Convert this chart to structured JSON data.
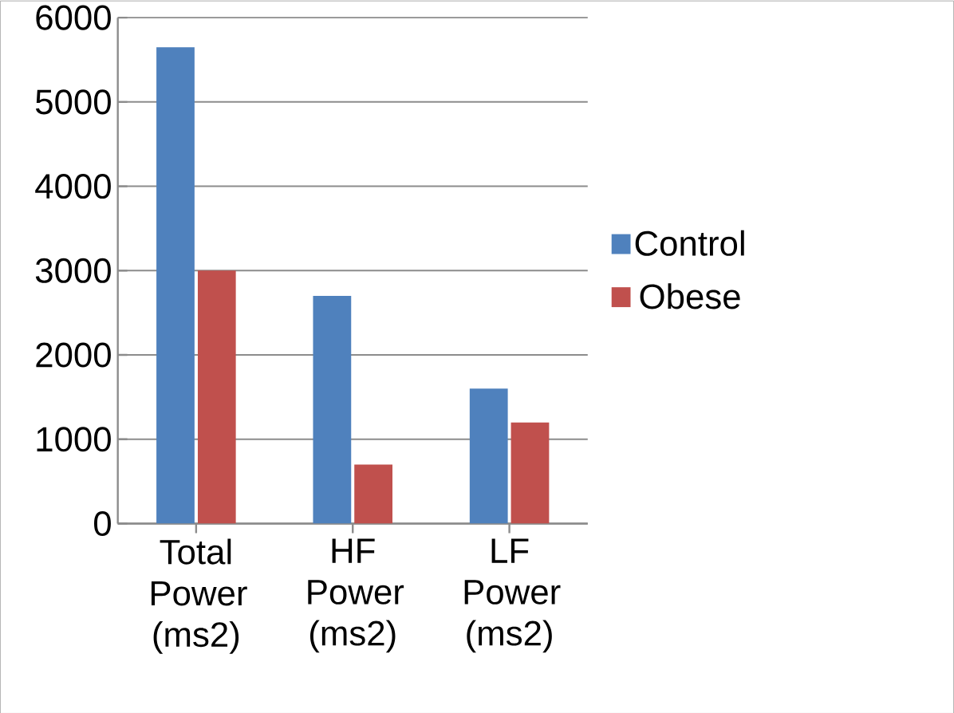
{
  "chart_data": {
    "type": "bar",
    "categories": [
      "Total Power (ms2)",
      "HF Power (ms2)",
      "LF Power (ms2)"
    ],
    "series": [
      {
        "name": "Control",
        "color": "#4f81bd",
        "values": [
          5650,
          2700,
          1600
        ]
      },
      {
        "name": "Obese",
        "color": "#c0504d",
        "values": [
          3000,
          700,
          1200
        ]
      }
    ],
    "ylim": [
      0,
      6000
    ],
    "yticks": [
      0,
      1000,
      2000,
      3000,
      4000,
      5000,
      6000
    ],
    "grid": "y",
    "legend": "right"
  }
}
